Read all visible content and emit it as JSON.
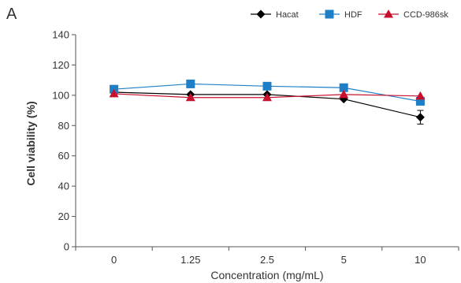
{
  "panel_label": "A",
  "chart_data": {
    "type": "line",
    "categories": [
      "0",
      "1.25",
      "2.5",
      "5",
      "10"
    ],
    "xlabel": "Concentration (mg/mL)",
    "ylabel": "Cell viability (%)",
    "ylim": [
      0,
      140
    ],
    "yticks": [
      0,
      20,
      40,
      60,
      80,
      100,
      120,
      140
    ],
    "grid": false,
    "legend_position": "top-right",
    "series": [
      {
        "name": "Hacat",
        "color": "#000000",
        "marker": "diamond",
        "values": [
          102,
          100.5,
          100.5,
          97.5,
          85.5
        ],
        "errors": [
          0,
          0,
          0,
          0,
          4.5
        ]
      },
      {
        "name": "HDF",
        "color": "#1f7fc6",
        "marker": "square",
        "values": [
          104,
          107.5,
          106,
          105,
          96
        ],
        "errors": [
          0,
          0,
          0,
          0,
          0
        ]
      },
      {
        "name": "CCD-986sk",
        "color": "#c8102e",
        "marker": "triangle",
        "values": [
          101,
          98.5,
          98.5,
          100.5,
          99.5
        ],
        "errors": [
          0,
          0,
          0,
          0,
          0
        ]
      }
    ]
  }
}
